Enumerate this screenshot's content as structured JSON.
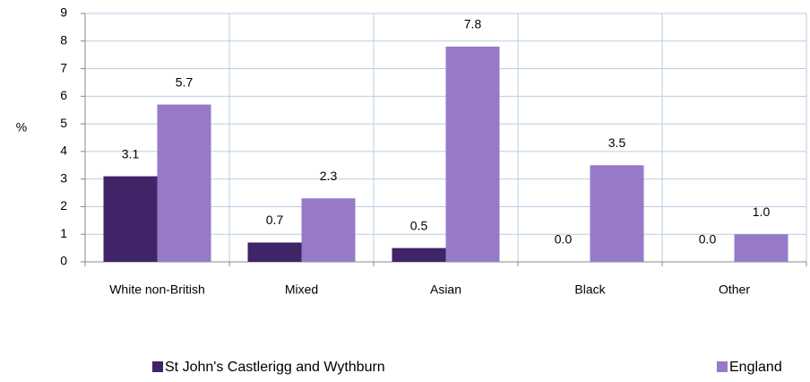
{
  "chart_data": {
    "type": "bar",
    "y_label": "%",
    "categories": [
      "White non-British",
      "Mixed",
      "Asian",
      "Black",
      "Other"
    ],
    "series": [
      {
        "name": "St John's Castlerigg and Wythburn",
        "color": "#3f2468",
        "values": [
          3.1,
          0.7,
          0.5,
          0,
          0
        ],
        "value_labels": [
          "3.1",
          "0.7",
          "0.5",
          "0.0",
          "0.0"
        ]
      },
      {
        "name": "England",
        "color": "#967ac8",
        "values": [
          5.7,
          2.3,
          7.8,
          3.5,
          1
        ],
        "value_labels": [
          "5.7",
          "2.3",
          "7.8",
          "3.5",
          "1.0"
        ]
      }
    ],
    "ylim": [
      0,
      9
    ],
    "yticks": [
      0,
      1,
      2,
      3,
      4,
      5,
      6,
      7,
      8,
      9
    ],
    "grid": true
  }
}
